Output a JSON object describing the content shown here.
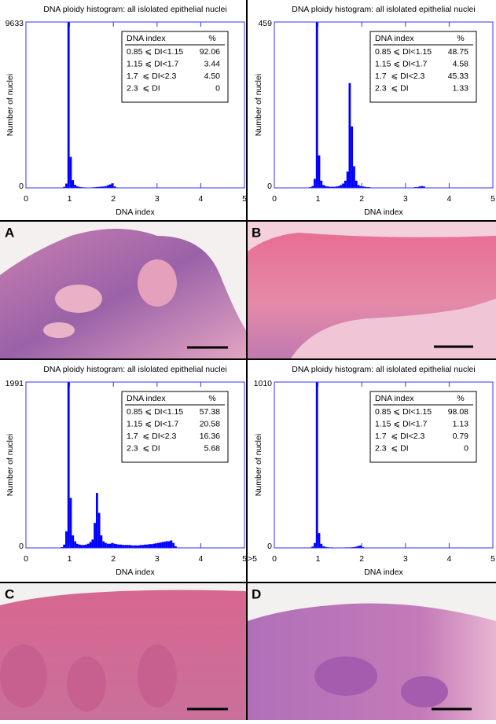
{
  "chart_data": [
    {
      "type": "histogram",
      "title": "DNA ploidy histogram: all islolated epithelial nuclei",
      "x_label": "DNA index",
      "y_label": "Number of nuclei",
      "color": "#0000ff",
      "bins": [
        0.8,
        0.85,
        0.9,
        0.95,
        1,
        1.05,
        1.1,
        1.15,
        1.2,
        1.25,
        1.3,
        1.35,
        1.4,
        1.45,
        1.5,
        1.55,
        1.6,
        1.65,
        1.7,
        1.75,
        1.8,
        1.85,
        1.9,
        1.95,
        2,
        2.05,
        2.1
      ],
      "values": [
        20,
        60,
        250,
        9633,
        1800,
        450,
        180,
        90,
        60,
        40,
        30,
        25,
        20,
        20,
        30,
        40,
        50,
        60,
        70,
        80,
        100,
        150,
        200,
        260,
        90,
        30
      ],
      "xlim": [
        0,
        5
      ],
      "xticks": [
        0,
        1,
        2,
        3,
        4,
        5
      ],
      "ylim": [
        0,
        9633
      ],
      "yticks": [
        0,
        9633
      ],
      "legend_table": {
        "header": [
          "DNA index",
          "%"
        ],
        "rows": [
          [
            "0.85 ⩽ DI<1.15",
            "92.06"
          ],
          [
            "1.15 ⩽ DI<1.7",
            "3.44"
          ],
          [
            "1.7  ⩽ DI<2.3",
            "4.50"
          ],
          [
            "2.3  ⩽ DI",
            "0"
          ]
        ]
      }
    },
    {
      "type": "histogram",
      "title": "DNA ploidy histogram: all islolated epithelial nuclei",
      "x_label": "DNA index",
      "y_label": "Number of nuclei",
      "color": "#0000ff",
      "bins": [
        0.8,
        0.85,
        0.9,
        0.95,
        1,
        1.05,
        1.1,
        1.15,
        1.2,
        1.25,
        1.3,
        1.35,
        1.4,
        1.45,
        1.5,
        1.55,
        1.6,
        1.65,
        1.7,
        1.75,
        1.8,
        1.85,
        1.9,
        1.95,
        2,
        2.05,
        2.1,
        2.15,
        2.2,
        2.25,
        2.3,
        2.35,
        2.4,
        2.45,
        2.5,
        2.55,
        2.6,
        2.65,
        2.7,
        2.75,
        2.8,
        2.85,
        2.9,
        2.95,
        3,
        3.05,
        3.1,
        3.15,
        3.2,
        3.25,
        3.3,
        3.35,
        3.4,
        3.45,
        3.5
      ],
      "values": [
        2,
        5,
        25,
        459,
        90,
        20,
        8,
        5,
        4,
        3,
        3,
        3,
        4,
        5,
        8,
        12,
        20,
        45,
        290,
        170,
        60,
        20,
        8,
        5,
        4,
        3,
        2,
        2,
        1,
        1,
        1,
        1,
        0,
        0,
        1,
        0,
        0,
        1,
        0,
        0,
        1,
        0,
        1,
        0,
        0,
        1,
        1,
        1,
        2,
        2,
        4,
        5,
        4,
        1
      ],
      "xlim": [
        0,
        5
      ],
      "xticks": [
        0,
        1,
        2,
        3,
        4,
        5
      ],
      "ylim": [
        0,
        459
      ],
      "yticks": [
        0,
        459
      ],
      "legend_table": {
        "header": [
          "DNA index",
          "%"
        ],
        "rows": [
          [
            "0.85 ⩽ DI<1.15",
            "48.75"
          ],
          [
            "1.15 ⩽ DI<1.7",
            "4.58"
          ],
          [
            "1.7  ⩽ DI<2.3",
            "45.33"
          ],
          [
            "2.3  ⩽ DI",
            "1.33"
          ]
        ]
      }
    },
    {
      "type": "histogram",
      "title": "DNA ploidy histogram: all islolated epithelial nuclei",
      "x_label": "DNA index",
      "y_label": "Number of nuclei",
      "color": "#0000ff",
      "bins": [
        0.8,
        0.85,
        0.9,
        0.95,
        1,
        1.05,
        1.1,
        1.15,
        1.2,
        1.25,
        1.3,
        1.35,
        1.4,
        1.45,
        1.5,
        1.55,
        1.6,
        1.65,
        1.7,
        1.75,
        1.8,
        1.85,
        1.9,
        1.95,
        2,
        2.05,
        2.1,
        2.15,
        2.2,
        2.25,
        2.3,
        2.35,
        2.4,
        2.45,
        2.5,
        2.55,
        2.6,
        2.65,
        2.7,
        2.75,
        2.8,
        2.85,
        2.9,
        2.95,
        3,
        3.05,
        3.1,
        3.15,
        3.2,
        3.25,
        3.3,
        3.35,
        3.4,
        3.45,
        3.5
      ],
      "values": [
        10,
        40,
        200,
        1991,
        600,
        150,
        80,
        50,
        40,
        35,
        35,
        40,
        50,
        70,
        100,
        300,
        660,
        420,
        150,
        80,
        60,
        50,
        50,
        60,
        50,
        45,
        40,
        40,
        35,
        35,
        35,
        35,
        30,
        30,
        30,
        30,
        35,
        35,
        40,
        40,
        45,
        45,
        50,
        55,
        60,
        65,
        70,
        75,
        80,
        80,
        90,
        60,
        20,
        5
      ],
      "xlim": [
        0,
        5
      ],
      "xticks": [
        0,
        1,
        2,
        3,
        4,
        5
      ],
      "overflow_label": ">5",
      "ylim": [
        0,
        1991
      ],
      "yticks": [
        0,
        1991
      ],
      "legend_table": {
        "header": [
          "DNA index",
          "%"
        ],
        "rows": [
          [
            "0.85 ⩽ DI<1.15",
            "57.38"
          ],
          [
            "1.15 ⩽ DI<1.7",
            "20.58"
          ],
          [
            "1.7  ⩽ DI<2.3",
            "16.36"
          ],
          [
            "2.3  ⩽ DI",
            "5.68"
          ]
        ]
      }
    },
    {
      "type": "histogram",
      "title": "DNA ploidy histogram: all islolated epithelial nuclei",
      "x_label": "DNA index",
      "y_label": "Number of nuclei",
      "color": "#0000ff",
      "bins": [
        0.8,
        0.85,
        0.9,
        0.95,
        1,
        1.05,
        1.1,
        1.15,
        1.2,
        1.25,
        1.3,
        1.35,
        1.4,
        1.45,
        1.5,
        1.55,
        1.6,
        1.65,
        1.7,
        1.75,
        1.8,
        1.85,
        1.9,
        1.95,
        2,
        2.05,
        2.1
      ],
      "values": [
        3,
        8,
        30,
        1010,
        90,
        25,
        10,
        6,
        4,
        3,
        3,
        2,
        2,
        2,
        2,
        2,
        3,
        3,
        3,
        4,
        5,
        8,
        12,
        15,
        5,
        2
      ],
      "xlim": [
        0,
        5
      ],
      "xticks": [
        0,
        1,
        2,
        3,
        4,
        5
      ],
      "ylim": [
        0,
        1010
      ],
      "yticks": [
        0,
        1010
      ],
      "legend_table": {
        "header": [
          "DNA index",
          "%"
        ],
        "rows": [
          [
            "0.85 ⩽ DI<1.15",
            "98.08"
          ],
          [
            "1.15 ⩽ DI<1.7",
            "1.13"
          ],
          [
            "1.7  ⩽ DI<2.3",
            "0.79"
          ],
          [
            "2.3  ⩽ DI",
            "0"
          ]
        ]
      }
    }
  ],
  "panel_labels": [
    "A",
    "B",
    "C",
    "D"
  ]
}
